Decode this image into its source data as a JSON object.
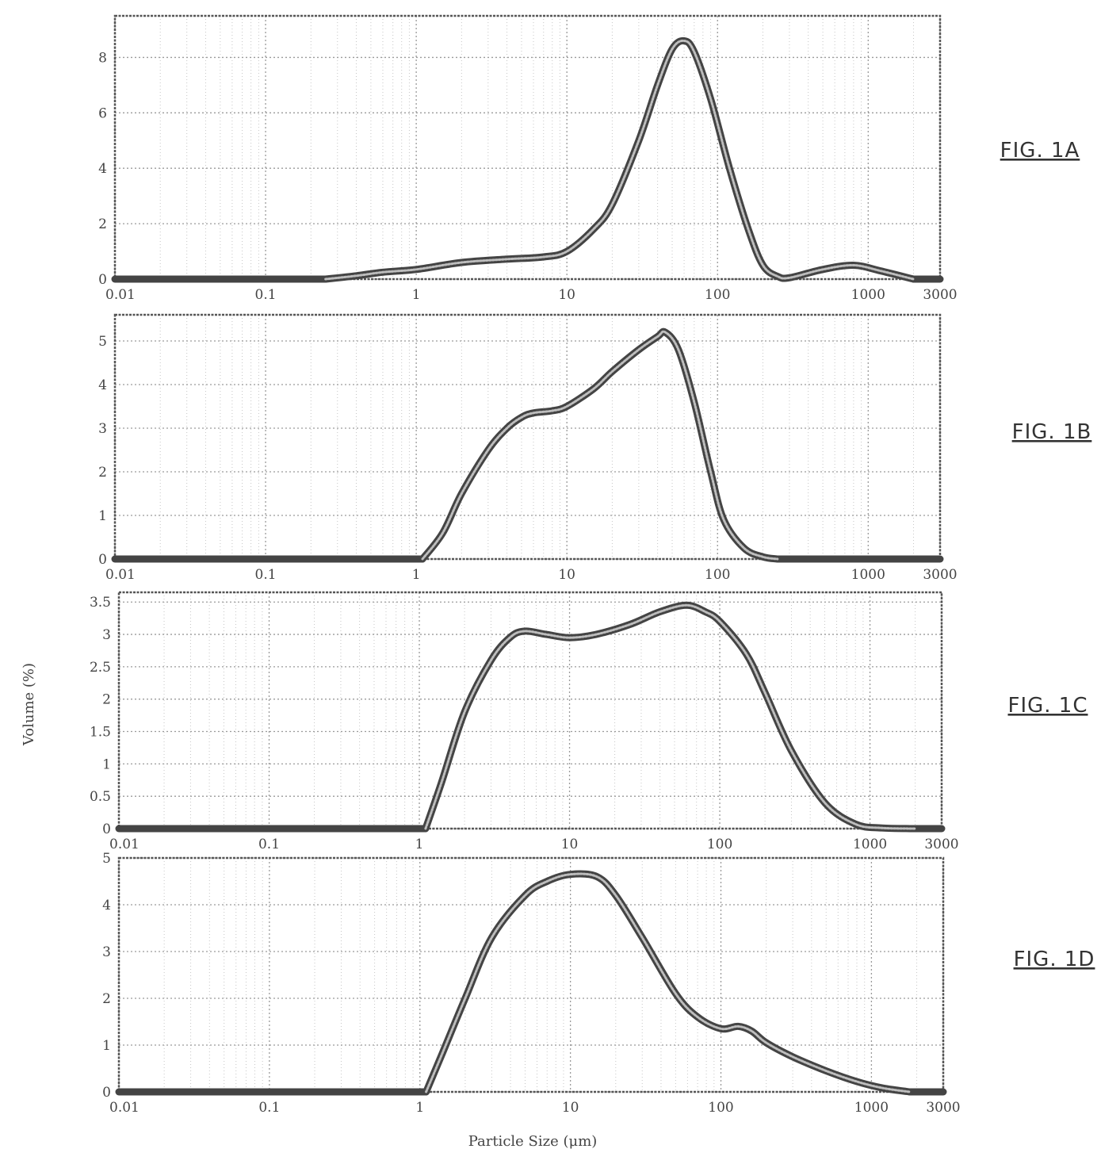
{
  "chart_data": [
    {
      "type": "line",
      "fig_label": "FIG. 1A",
      "x_scale": "log",
      "xlim": [
        0.01,
        3000
      ],
      "ylim": [
        0,
        9.5
      ],
      "y_ticks": [
        "0",
        "2",
        "4",
        "6",
        "8"
      ],
      "y_tick_values": [
        0,
        2,
        4,
        6,
        8
      ],
      "x_ticks": [
        "0.01",
        "0.1",
        "1",
        "10",
        "100",
        "1000",
        "3000"
      ],
      "x_tick_values": [
        0.01,
        0.1,
        1,
        10,
        100,
        1000,
        3000
      ],
      "grid": true,
      "series": [
        {
          "x": [
            0.25,
            0.4,
            0.6,
            1,
            2,
            4,
            7,
            10,
            15,
            20,
            30,
            40,
            50,
            60,
            70,
            90,
            120,
            160,
            200,
            250,
            300,
            500,
            800,
            1200,
            2000
          ],
          "y": [
            0,
            0.12,
            0.25,
            0.35,
            0.6,
            0.72,
            0.8,
            1.0,
            1.8,
            2.7,
            5.0,
            7.0,
            8.3,
            8.6,
            8.2,
            6.5,
            4.0,
            1.8,
            0.5,
            0.1,
            0.05,
            0.35,
            0.5,
            0.3,
            0
          ]
        }
      ]
    },
    {
      "type": "line",
      "fig_label": "FIG. 1B",
      "x_scale": "log",
      "xlim": [
        0.01,
        3000
      ],
      "ylim": [
        0,
        5.6
      ],
      "y_ticks": [
        "0",
        "1",
        "2",
        "3",
        "4",
        "5"
      ],
      "y_tick_values": [
        0,
        1,
        2,
        3,
        4,
        5
      ],
      "x_ticks": [
        "0.01",
        "0.1",
        "1",
        "10",
        "100",
        "1000",
        "3000"
      ],
      "x_tick_values": [
        0.01,
        0.1,
        1,
        10,
        100,
        1000,
        3000
      ],
      "grid": true,
      "series": [
        {
          "x": [
            1.1,
            1.5,
            2,
            3,
            4,
            5,
            6,
            8,
            10,
            15,
            20,
            30,
            40,
            45,
            55,
            70,
            90,
            110,
            150,
            200,
            250
          ],
          "y": [
            0,
            0.6,
            1.5,
            2.5,
            3.0,
            3.25,
            3.35,
            3.4,
            3.5,
            3.9,
            4.3,
            4.8,
            5.1,
            5.2,
            4.8,
            3.6,
            2.0,
            0.9,
            0.25,
            0.05,
            0
          ]
        }
      ]
    },
    {
      "type": "line",
      "fig_label": "FIG. 1C",
      "x_scale": "log",
      "xlim": [
        0.01,
        3000
      ],
      "ylim": [
        0,
        3.65
      ],
      "y_ticks": [
        "0",
        "0.5",
        "1",
        "1.5",
        "2",
        "2.5",
        "3",
        "3.5"
      ],
      "y_tick_values": [
        0,
        0.5,
        1,
        1.5,
        2,
        2.5,
        3,
        3.5
      ],
      "x_ticks": [
        "0.01",
        "0.1",
        "1",
        "10",
        "100",
        "1000",
        "3000"
      ],
      "x_tick_values": [
        0.01,
        0.1,
        1,
        10,
        100,
        1000,
        3000
      ],
      "grid": true,
      "series": [
        {
          "x": [
            1.1,
            1.4,
            2,
            3,
            4,
            5,
            7,
            10,
            15,
            25,
            40,
            60,
            80,
            100,
            150,
            200,
            300,
            500,
            800,
            1200,
            2000
          ],
          "y": [
            0,
            0.7,
            1.8,
            2.6,
            2.95,
            3.05,
            3.0,
            2.95,
            3.0,
            3.15,
            3.35,
            3.45,
            3.35,
            3.2,
            2.7,
            2.1,
            1.2,
            0.4,
            0.07,
            0.01,
            0
          ]
        }
      ]
    },
    {
      "type": "line",
      "fig_label": "FIG. 1D",
      "x_scale": "log",
      "xlim": [
        0.01,
        3000
      ],
      "ylim": [
        0,
        5
      ],
      "y_ticks": [
        "0",
        "1",
        "2",
        "3",
        "4",
        "5"
      ],
      "y_tick_values": [
        0,
        1,
        2,
        3,
        4,
        5
      ],
      "x_ticks": [
        "0.01",
        "0.1",
        "1",
        "10",
        "100",
        "1000",
        "3000"
      ],
      "x_tick_values": [
        0.01,
        0.1,
        1,
        10,
        100,
        1000,
        3000
      ],
      "grid": true,
      "series": [
        {
          "x": [
            1.1,
            1.4,
            2,
            3,
            5,
            7,
            10,
            15,
            20,
            30,
            50,
            70,
            100,
            130,
            160,
            200,
            300,
            500,
            800,
            1200,
            1800
          ],
          "y": [
            0,
            0.8,
            2.0,
            3.3,
            4.2,
            4.5,
            4.65,
            4.6,
            4.2,
            3.3,
            2.1,
            1.6,
            1.35,
            1.4,
            1.3,
            1.05,
            0.75,
            0.45,
            0.22,
            0.08,
            0
          ]
        }
      ]
    }
  ],
  "ylabel": "Volume (%)",
  "xlabel": "Particle Size (μm)",
  "colors": {
    "curve": "#444444",
    "grid": "#9a9a9a",
    "frame": "#555555"
  }
}
